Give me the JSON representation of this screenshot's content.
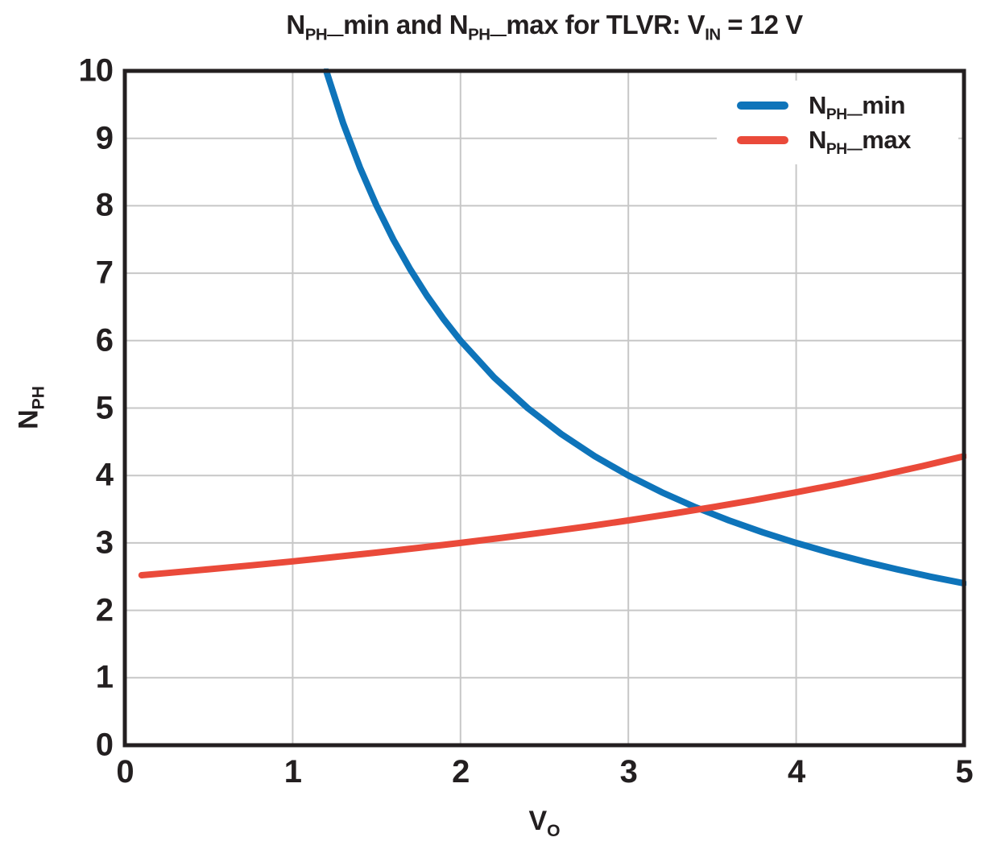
{
  "page": {
    "background": "#ffffff"
  },
  "colors": {
    "text": "#231f20",
    "frame": "#231f20",
    "grid": "#c7c7c7",
    "legend_background": "#ffffff",
    "nph_min": "#0e74ba",
    "nph_max": "#ea4a3a"
  },
  "display": {
    "title_parts": [
      {
        "t": "N"
      },
      {
        "t": "PH—",
        "sub": true
      },
      {
        "t": "min and N"
      },
      {
        "t": "PH—",
        "sub": true
      },
      {
        "t": "max for TLVR: V"
      },
      {
        "t": "IN",
        "sub": true
      },
      {
        "t": " = 12 V"
      }
    ],
    "x_label_parts": [
      {
        "t": "V"
      },
      {
        "t": "O",
        "sub": true
      }
    ],
    "y_label_parts": [
      {
        "t": "N"
      },
      {
        "t": "PH",
        "sub": true
      }
    ],
    "legend": {
      "items": [
        {
          "color": "#0e74ba",
          "parts": [
            {
              "t": "N"
            },
            {
              "t": "PH—",
              "sub": true
            },
            {
              "t": "min"
            }
          ]
        },
        {
          "color": "#ea4a3a",
          "parts": [
            {
              "t": "N"
            },
            {
              "t": "PH—",
              "sub": true
            },
            {
              "t": "max"
            }
          ]
        }
      ]
    }
  },
  "chart_data": {
    "type": "line",
    "title": "N_PH_min and N_PH_max for TLVR: V_IN = 12 V",
    "xlabel": "V_O",
    "ylabel": "N_PH",
    "xlim": [
      0,
      5
    ],
    "ylim": [
      0,
      10
    ],
    "xticks": [
      0,
      1,
      2,
      3,
      4,
      5
    ],
    "yticks": [
      0,
      1,
      2,
      3,
      4,
      5,
      6,
      7,
      8,
      9,
      10
    ],
    "grid": true,
    "legend_position": "upper right",
    "series": [
      {
        "name": "N_PH_min",
        "color": "#0e74ba",
        "x": [
          1.2,
          1.3,
          1.4,
          1.5,
          1.6,
          1.7,
          1.8,
          1.9,
          2.0,
          2.2,
          2.4,
          2.6,
          2.8,
          3.0,
          3.2,
          3.4,
          3.6,
          3.8,
          4.0,
          4.2,
          4.4,
          4.6,
          4.8,
          5.0
        ],
        "y": [
          10,
          9.231,
          8.571,
          8,
          7.5,
          7.059,
          6.667,
          6.316,
          6,
          5.455,
          5,
          4.615,
          4.286,
          4,
          3.75,
          3.529,
          3.333,
          3.158,
          3,
          2.857,
          2.727,
          2.609,
          2.5,
          2.4
        ]
      },
      {
        "name": "N_PH_max",
        "color": "#ea4a3a",
        "x": [
          0.1,
          0.25,
          0.5,
          0.75,
          1.0,
          1.25,
          1.5,
          1.75,
          2.0,
          2.25,
          2.5,
          2.75,
          3.0,
          3.25,
          3.5,
          3.75,
          4.0,
          4.25,
          4.5,
          4.75,
          5.0
        ],
        "y": [
          2.521,
          2.553,
          2.609,
          2.667,
          2.727,
          2.791,
          2.857,
          2.927,
          3,
          3.077,
          3.158,
          3.243,
          3.333,
          3.429,
          3.529,
          3.636,
          3.75,
          3.871,
          4,
          4.138,
          4.286
        ]
      }
    ]
  }
}
